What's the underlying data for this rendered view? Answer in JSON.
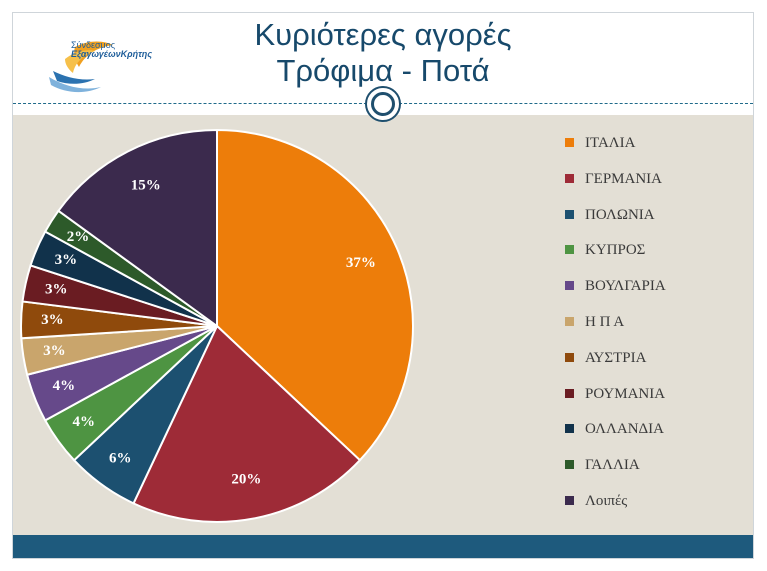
{
  "header": {
    "title_line1": "Κυριότερες αγορές",
    "title_line2": "Τρόφιμα - Ποτά",
    "logo_line1": "Σύνδεσμος",
    "logo_line2": "ΕξαγωγέωνΚρήτης"
  },
  "chart_data": {
    "type": "pie",
    "title": "",
    "legend_position": "right",
    "slices": [
      {
        "label": "ΙΤΑΛΙΑ",
        "value": 37,
        "display": "37%",
        "color": "#ed7d0a"
      },
      {
        "label": "ΓΕΡΜΑΝΙΑ",
        "value": 20,
        "display": "20%",
        "color": "#9e2b37"
      },
      {
        "label": "ΠΟΛΩΝΙΑ",
        "value": 6,
        "display": "6%",
        "color": "#1c5070"
      },
      {
        "label": "ΚΥΠΡΟΣ",
        "value": 4,
        "display": "4%",
        "color": "#4e9442"
      },
      {
        "label": "ΒΟΥΛΓΑΡΙΑ",
        "value": 4,
        "display": "4%",
        "color": "#66498a"
      },
      {
        "label": "Η Π Α",
        "value": 3,
        "display": "3%",
        "color": "#c9a56c"
      },
      {
        "label": "ΑΥΣΤΡΙΑ",
        "value": 3,
        "display": "3%",
        "color": "#8f4a0c"
      },
      {
        "label": "ΡΟΥΜΑΝΙΑ",
        "value": 3,
        "display": "3%",
        "color": "#6a1c22"
      },
      {
        "label": "ΟΛΛΑΝΔΙΑ",
        "value": 3,
        "display": "3%",
        "color": "#11324b"
      },
      {
        "label": "ΓΑΛΛΙΑ",
        "value": 2,
        "display": "2%",
        "color": "#2d5a2a"
      },
      {
        "label": "Λοιπές",
        "value": 15,
        "display": "15%",
        "color": "#3b2a4d"
      }
    ]
  }
}
